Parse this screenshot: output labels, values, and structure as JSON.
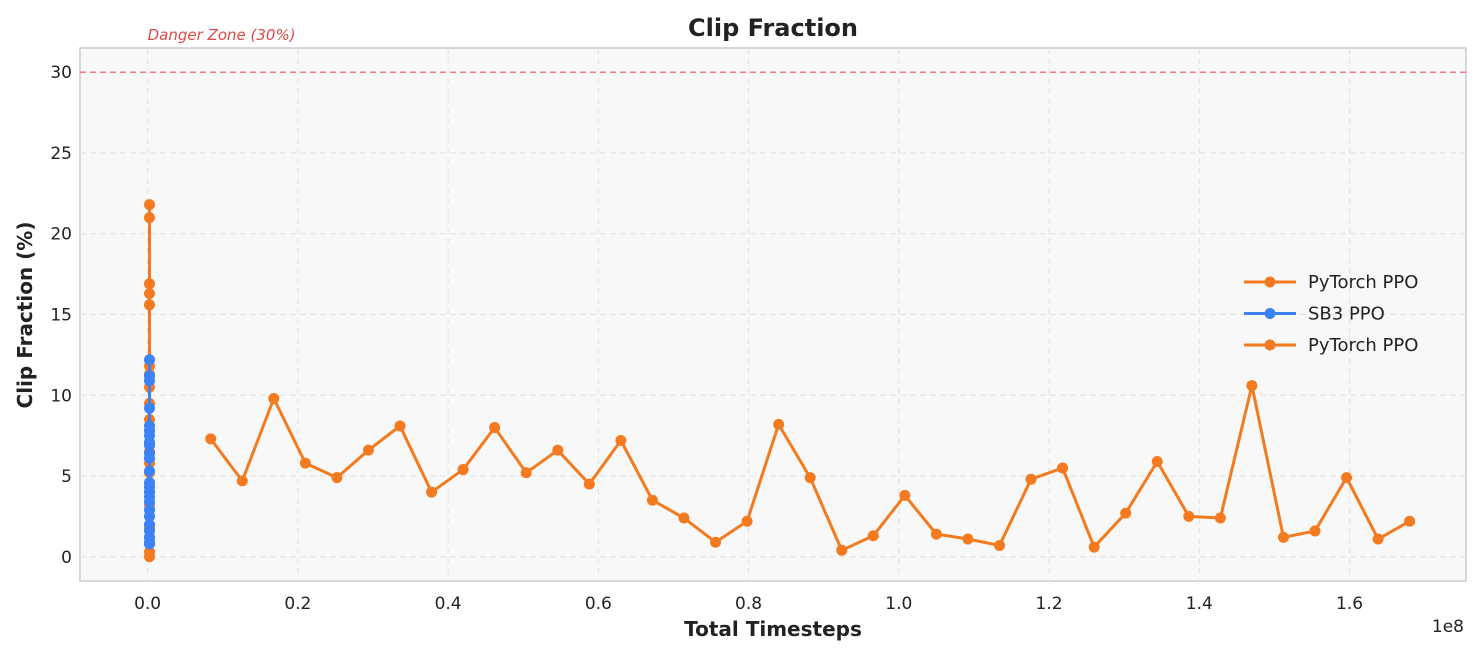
{
  "chart_data": {
    "type": "line",
    "title": "Clip Fraction",
    "xlabel": "Total Timesteps",
    "ylabel": "Clip Fraction (%)",
    "x_offset_label": "1e8",
    "x_scale": 100000000,
    "xlim": [
      -0.09,
      1.755
    ],
    "ylim": [
      -1.5,
      31.5
    ],
    "x_ticks": [
      0.0,
      0.2,
      0.4,
      0.6,
      0.8,
      1.0,
      1.2,
      1.4,
      1.6
    ],
    "x_tick_labels": [
      "0.0",
      "0.2",
      "0.4",
      "0.6",
      "0.8",
      "1.0",
      "1.2",
      "1.4",
      "1.6"
    ],
    "y_ticks": [
      0,
      5,
      10,
      15,
      20,
      25,
      30
    ],
    "y_tick_labels": [
      "0",
      "5",
      "10",
      "15",
      "20",
      "25",
      "30"
    ],
    "grid": true,
    "legend_position": "center-right",
    "reference_line": {
      "y": 30,
      "label": "Danger Zone (30%)",
      "color": "#f47c84",
      "style": "dashed"
    },
    "series": [
      {
        "name": "PyTorch PPO",
        "color": "#f47a1f",
        "x": [
          0.0025,
          0.0025,
          0.0025,
          0.0025,
          0.0025,
          0.0025,
          0.0025,
          0.0025,
          0.0025,
          0.0025,
          0.0025,
          0.0025,
          0.0025,
          0.0025,
          0.0025,
          0.0025,
          0.0025,
          0.0025,
          0.0025,
          0.0025,
          0.0025,
          0.0025,
          0.0025,
          0.0025
        ],
        "y": [
          21.8,
          21.0,
          16.9,
          16.3,
          15.6,
          11.8,
          11.3,
          10.5,
          9.5,
          8.5,
          7.8,
          7.0,
          6.5,
          5.8,
          5.2,
          4.5,
          4.0,
          3.2,
          2.5,
          1.8,
          1.2,
          0.8,
          0.3,
          0.0
        ]
      },
      {
        "name": "SB3 PPO",
        "color": "#3b82f6",
        "x": [
          0.0025,
          0.0025,
          0.0025,
          0.0025,
          0.0025,
          0.0025,
          0.0025,
          0.0025,
          0.0025,
          0.0025,
          0.0025,
          0.0025,
          0.0025,
          0.0025,
          0.0025,
          0.0025,
          0.0025,
          0.0025,
          0.0025,
          0.0025,
          0.0025,
          0.0025,
          0.0025,
          0.0025
        ],
        "y": [
          12.2,
          11.2,
          10.9,
          9.2,
          8.1,
          7.8,
          7.5,
          7.1,
          6.9,
          6.4,
          6.1,
          5.3,
          4.6,
          4.3,
          4.0,
          3.7,
          3.4,
          2.9,
          2.5,
          2.0,
          1.6,
          1.2,
          0.9,
          0.8
        ]
      },
      {
        "name": "PyTorch PPO",
        "color": "#f47a1f",
        "x": [
          0.084,
          0.126,
          0.168,
          0.21,
          0.252,
          0.294,
          0.336,
          0.378,
          0.42,
          0.462,
          0.504,
          0.546,
          0.588,
          0.63,
          0.672,
          0.714,
          0.756,
          0.798,
          0.84,
          0.882,
          0.924,
          0.966,
          1.008,
          1.05,
          1.092,
          1.134,
          1.176,
          1.218,
          1.26,
          1.302,
          1.344,
          1.386,
          1.428,
          1.47,
          1.512,
          1.554,
          1.596,
          1.638,
          1.68
        ],
        "y": [
          7.3,
          4.7,
          9.8,
          5.8,
          4.9,
          6.6,
          8.1,
          4.0,
          5.4,
          8.0,
          5.2,
          6.6,
          4.5,
          7.2,
          3.5,
          2.4,
          0.9,
          2.2,
          8.2,
          4.9,
          0.4,
          1.3,
          3.8,
          1.4,
          1.1,
          0.7,
          4.8,
          5.5,
          0.6,
          2.7,
          5.9,
          2.5,
          2.4,
          10.6,
          1.2,
          1.6,
          4.9,
          1.1,
          2.2
        ]
      }
    ]
  }
}
